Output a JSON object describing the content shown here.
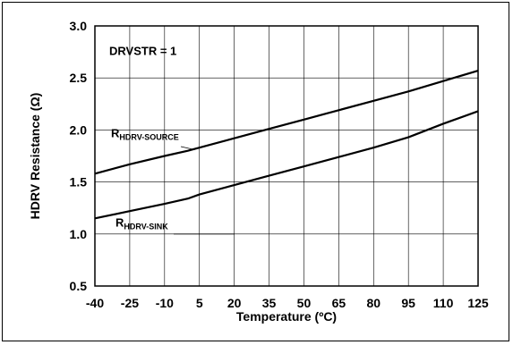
{
  "chart_data": {
    "type": "line",
    "title": "",
    "xlabel": "Temperature (ºC)",
    "ylabel": "HDRV Resistance (Ω)",
    "xlim": [
      -40,
      125
    ],
    "ylim": [
      0.5,
      3.0
    ],
    "x_ticks": [
      "-40",
      "-25",
      "-10",
      "5",
      "20",
      "35",
      "50",
      "65",
      "80",
      "95",
      "110",
      "125"
    ],
    "y_ticks": [
      "0.5",
      "1.0",
      "1.5",
      "2.0",
      "2.5",
      "3.0"
    ],
    "grid": true,
    "annotation": "DRVSTR = 1",
    "series": [
      {
        "name": "R_HDRV-SOURCE",
        "label_main": "R",
        "label_sub": "HDRV-SOURCE",
        "x": [
          -40,
          -25,
          -10,
          0,
          5,
          20,
          35,
          50,
          65,
          80,
          95,
          110,
          125
        ],
        "y": [
          1.58,
          1.67,
          1.75,
          1.8,
          1.83,
          1.92,
          2.01,
          2.1,
          2.19,
          2.28,
          2.37,
          2.47,
          2.57
        ]
      },
      {
        "name": "R_HDRV-SINK",
        "label_main": "R",
        "label_sub": "HDRV-SINK",
        "x": [
          -40,
          -25,
          -10,
          0,
          5,
          20,
          35,
          50,
          65,
          80,
          95,
          110,
          125
        ],
        "y": [
          1.15,
          1.22,
          1.29,
          1.34,
          1.38,
          1.47,
          1.56,
          1.65,
          1.74,
          1.83,
          1.93,
          2.06,
          2.18
        ]
      }
    ]
  }
}
